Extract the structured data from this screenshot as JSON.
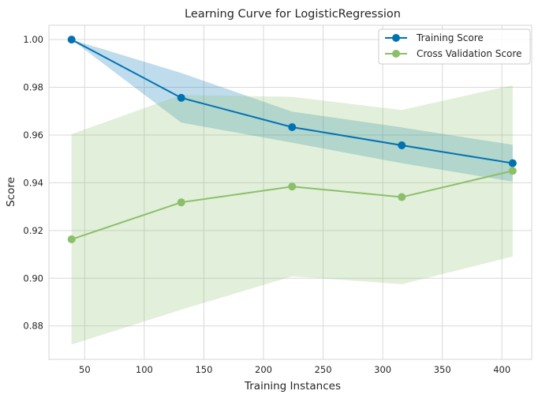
{
  "chart_data": {
    "type": "line",
    "title": "Learning Curve for LogisticRegression",
    "xlabel": "Training Instances",
    "ylabel": "Score",
    "xlim": [
      20,
      425
    ],
    "ylim": [
      0.866,
      1.006
    ],
    "x_ticks": [
      50,
      100,
      150,
      200,
      250,
      300,
      350,
      400
    ],
    "y_ticks": [
      0.88,
      0.9,
      0.92,
      0.94,
      0.96,
      0.98,
      1.0
    ],
    "x_tick_labels": [
      "50",
      "100",
      "150",
      "200",
      "250",
      "300",
      "350",
      "400"
    ],
    "y_tick_labels": [
      "0.88",
      "0.90",
      "0.92",
      "0.94",
      "0.96",
      "0.98",
      "1.00"
    ],
    "grid": true,
    "legend_position": "top-right",
    "x": [
      39,
      131,
      224,
      316,
      409
    ],
    "series": [
      {
        "name": "Training Score",
        "color": "#0072b2",
        "values": [
          1.0,
          0.9756,
          0.9633,
          0.9557,
          0.9482
        ],
        "band_lower": [
          1.0,
          0.9652,
          0.9568,
          0.9482,
          0.9405
        ],
        "band_upper": [
          1.0,
          0.986,
          0.9698,
          0.9632,
          0.9559
        ]
      },
      {
        "name": "Cross Validation Score",
        "color": "#8cbf6a",
        "values": [
          0.9163,
          0.9318,
          0.9384,
          0.934,
          0.945
        ],
        "band_lower": [
          0.8722,
          0.8868,
          0.9008,
          0.8975,
          0.9091
        ],
        "band_upper": [
          0.9604,
          0.9768,
          0.976,
          0.9705,
          0.9809
        ]
      }
    ]
  }
}
